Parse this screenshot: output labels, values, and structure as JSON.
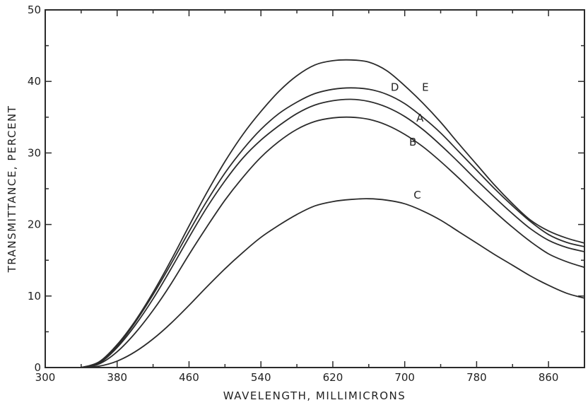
{
  "chart_data": {
    "type": "line",
    "title": "",
    "xlabel": "WAVELENGTH, MILLIMICRONS",
    "ylabel": "TRANSMITTANCE, PERCENT",
    "xlim": [
      300,
      900
    ],
    "ylim": [
      0,
      50
    ],
    "x_ticks": [
      300,
      380,
      460,
      540,
      620,
      700,
      780,
      860
    ],
    "x_tick_labels": [
      "300",
      "380",
      "460",
      "540",
      "620",
      "700",
      "780",
      "860"
    ],
    "y_ticks": [
      0,
      10,
      20,
      30,
      40,
      50
    ],
    "y_tick_labels": [
      "0",
      "10",
      "20",
      "30",
      "40",
      "50"
    ],
    "grid": false,
    "series": [
      {
        "name": "E",
        "x": [
          340,
          360,
          380,
          400,
          420,
          440,
          460,
          480,
          500,
          520,
          540,
          560,
          580,
          600,
          620,
          640,
          660,
          680,
          700,
          720,
          740,
          760,
          780,
          800,
          820,
          840,
          860,
          880,
          900
        ],
        "y": [
          0,
          0.8,
          3.2,
          6.5,
          10.5,
          15.0,
          19.8,
          24.5,
          28.8,
          32.6,
          35.8,
          38.6,
          40.8,
          42.3,
          42.9,
          43.0,
          42.7,
          41.5,
          39.4,
          37.0,
          34.3,
          31.3,
          28.4,
          25.5,
          22.9,
          20.6,
          19.1,
          18.1,
          17.4
        ]
      },
      {
        "name": "D",
        "x": [
          340,
          360,
          380,
          400,
          420,
          440,
          460,
          480,
          500,
          520,
          540,
          560,
          580,
          600,
          620,
          640,
          660,
          680,
          700,
          720,
          740,
          760,
          780,
          800,
          820,
          840,
          860,
          880,
          900
        ],
        "y": [
          0,
          0.7,
          3.0,
          6.3,
          10.2,
          14.5,
          19.0,
          23.3,
          27.2,
          30.5,
          33.3,
          35.5,
          37.1,
          38.3,
          38.9,
          39.1,
          38.9,
          38.2,
          36.9,
          35.0,
          32.8,
          30.2,
          27.6,
          25.0,
          22.6,
          20.4,
          18.6,
          17.5,
          16.9
        ]
      },
      {
        "name": "A",
        "x": [
          340,
          360,
          380,
          400,
          420,
          440,
          460,
          480,
          500,
          520,
          540,
          560,
          580,
          600,
          620,
          640,
          660,
          680,
          700,
          720,
          740,
          760,
          780,
          800,
          820,
          840,
          860,
          880,
          900
        ],
        "y": [
          0,
          0.6,
          2.8,
          5.9,
          9.6,
          13.8,
          18.2,
          22.4,
          26.1,
          29.3,
          31.8,
          33.8,
          35.5,
          36.7,
          37.3,
          37.5,
          37.2,
          36.4,
          35.1,
          33.3,
          31.1,
          28.7,
          26.2,
          23.8,
          21.5,
          19.4,
          17.8,
          16.8,
          16.2
        ]
      },
      {
        "name": "B",
        "x": [
          340,
          360,
          380,
          400,
          420,
          440,
          460,
          480,
          500,
          520,
          540,
          560,
          580,
          600,
          620,
          640,
          660,
          680,
          700,
          720,
          740,
          760,
          780,
          800,
          820,
          840,
          860,
          880,
          900
        ],
        "y": [
          0,
          0.5,
          2.2,
          4.8,
          8.0,
          11.7,
          15.8,
          19.7,
          23.4,
          26.6,
          29.4,
          31.6,
          33.3,
          34.4,
          34.9,
          35.0,
          34.7,
          33.9,
          32.6,
          30.9,
          28.8,
          26.5,
          24.1,
          21.8,
          19.6,
          17.6,
          15.9,
          14.8,
          14.0
        ]
      },
      {
        "name": "C",
        "x": [
          340,
          360,
          380,
          400,
          420,
          440,
          460,
          480,
          500,
          520,
          540,
          560,
          580,
          600,
          620,
          640,
          660,
          680,
          700,
          720,
          740,
          760,
          780,
          800,
          820,
          840,
          860,
          880,
          900
        ],
        "y": [
          0,
          0.2,
          0.9,
          2.2,
          4.0,
          6.2,
          8.7,
          11.3,
          13.8,
          16.1,
          18.2,
          19.9,
          21.4,
          22.6,
          23.2,
          23.5,
          23.6,
          23.4,
          22.9,
          21.9,
          20.6,
          19.0,
          17.4,
          15.8,
          14.3,
          12.8,
          11.5,
          10.4,
          9.7
        ]
      }
    ],
    "curve_labels": [
      {
        "text": "E",
        "x": 723,
        "y": 39.2
      },
      {
        "text": "D",
        "x": 689,
        "y": 39.2
      },
      {
        "text": "A",
        "x": 717,
        "y": 34.9
      },
      {
        "text": "B",
        "x": 709,
        "y": 31.5
      },
      {
        "text": "C",
        "x": 714,
        "y": 24.1
      }
    ]
  }
}
